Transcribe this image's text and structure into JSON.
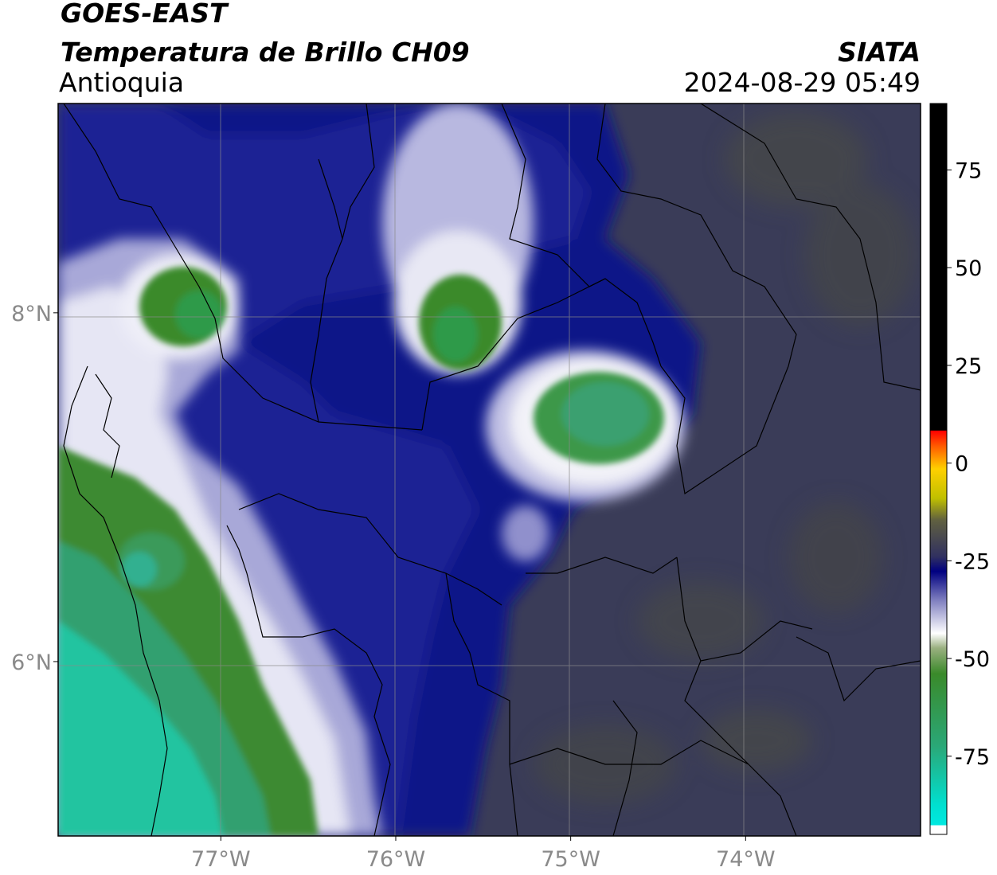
{
  "header": {
    "title_line1": "GOES-EAST",
    "title_line2": "Temperatura de Brillo CH09",
    "region": "Antioquia",
    "brand": "SIATA",
    "datetime": "2024-08-29 05:49"
  },
  "map": {
    "background_color": "#3a3c55",
    "lon_ticks": [
      {
        "value": -77,
        "label": "77°W"
      },
      {
        "value": -76,
        "label": "76°W"
      },
      {
        "value": -75,
        "label": "75°W"
      },
      {
        "value": -74,
        "label": "74°W"
      }
    ],
    "lat_ticks": [
      {
        "value": 8,
        "label": "8°N"
      },
      {
        "value": 6,
        "label": "6°N"
      }
    ],
    "lon_range": [
      -77.93,
      -73.0
    ],
    "lat_range": [
      5.0,
      9.2
    ]
  },
  "colorbar": {
    "tick_labels": [
      "75",
      "50",
      "25",
      "0",
      "-25",
      "-50",
      "-75"
    ],
    "tick_values": [
      75,
      50,
      25,
      0,
      -25,
      -50,
      -75
    ],
    "range": [
      -95,
      92
    ],
    "colors": {
      "black": "#000000",
      "red": "#ff0000",
      "yellow": "#ffff00",
      "navy": "#000080",
      "white": "#ffffff",
      "green": "#3a8a2a",
      "cyan": "#00e0e0"
    }
  }
}
